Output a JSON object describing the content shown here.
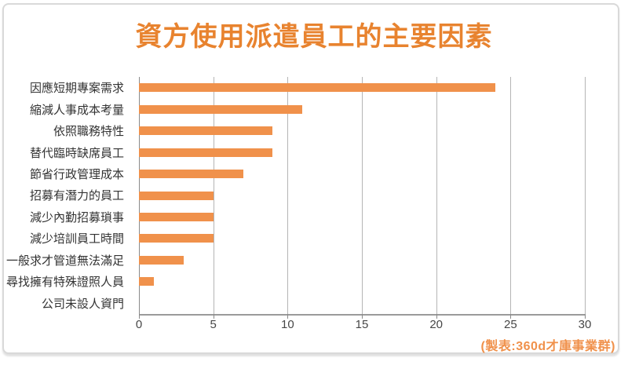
{
  "title": "資方使用派遣員工的主要因素",
  "footer": {
    "credit": "(製表:360d才庫事業群)"
  },
  "colors": {
    "bar": "#f0914b",
    "title": "#e8832f",
    "credit": "#f0914b",
    "gridline": "#b5b5b5",
    "axis": "#8a8a8a",
    "category_label": "#333333",
    "tick_label": "#474747",
    "card_border": "#d9d9d9"
  },
  "chart_data": {
    "type": "bar",
    "orientation": "horizontal",
    "title": "資方使用派遣員工的主要因素",
    "categories": [
      "因應短期專案需求",
      "縮減人事成本考量",
      "依照職務特性",
      "替代臨時缺席員工",
      "節省行政管理成本",
      "招募有潛力的員工",
      "減少內勤招募瑣事",
      "減少培訓員工時間",
      "一般求才管道無法滿足",
      "尋找擁有特殊證照人員",
      "公司未設人資門"
    ],
    "values": [
      24,
      11,
      9,
      9,
      7,
      5,
      5,
      5,
      3,
      1,
      0
    ],
    "xlabel": "",
    "ylabel": "",
    "xlim": [
      0,
      30
    ],
    "xticks": [
      0,
      5,
      10,
      15,
      20,
      25,
      30
    ],
    "grid": "vertical-only",
    "legend": "none",
    "bar_value_labels": "none"
  }
}
